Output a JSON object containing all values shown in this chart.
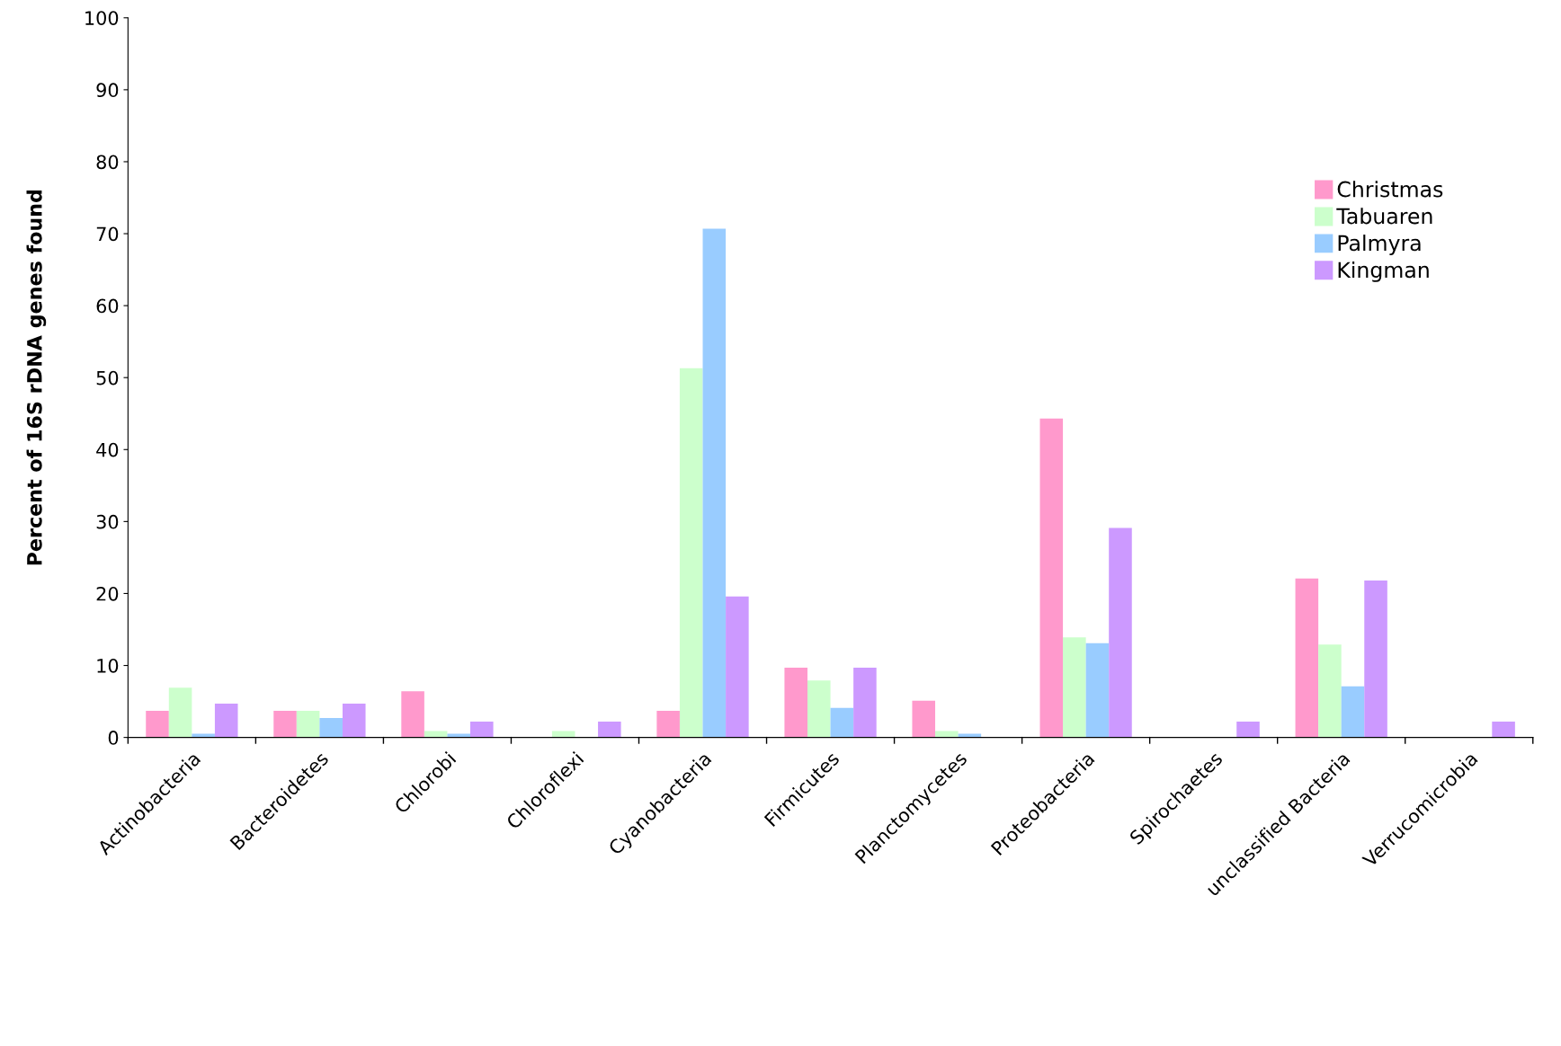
{
  "chart_data": {
    "type": "bar",
    "ylabel": "Percent of 16S rDNA genes found",
    "categories": [
      "Actinobacteria",
      "Bacteroidetes",
      "Chlorobi",
      "Chloroflexi",
      "Cyanobacteria",
      "Firmicutes",
      "Planctomycetes",
      "Proteobacteria",
      "Spirochaetes",
      "unclassified Bacteria",
      "Verrucomicrobia"
    ],
    "series": [
      {
        "name": "Christmas",
        "color": "#ff99cc",
        "values": [
          3.7,
          3.7,
          6.4,
          0,
          3.7,
          9.7,
          5.1,
          44.3,
          0,
          22.1,
          0
        ]
      },
      {
        "name": "Tabuaren",
        "color": "#ccffcc",
        "values": [
          6.9,
          3.7,
          0.9,
          0.9,
          51.3,
          7.9,
          0.9,
          13.9,
          0,
          12.9,
          0
        ]
      },
      {
        "name": "Palmyra",
        "color": "#99ccff",
        "values": [
          0.5,
          2.7,
          0.5,
          0,
          70.7,
          4.1,
          0.5,
          13.1,
          0,
          7.1,
          0
        ]
      },
      {
        "name": "Kingman",
        "color": "#cc99ff",
        "values": [
          4.7,
          4.7,
          2.2,
          2.2,
          19.6,
          9.7,
          0,
          29.1,
          2.2,
          21.8,
          2.2
        ]
      }
    ],
    "ylim": [
      0,
      100
    ],
    "yticks": [
      0,
      10,
      20,
      30,
      40,
      50,
      60,
      70,
      80,
      90,
      100
    ],
    "grid": false,
    "legend": "top right"
  }
}
